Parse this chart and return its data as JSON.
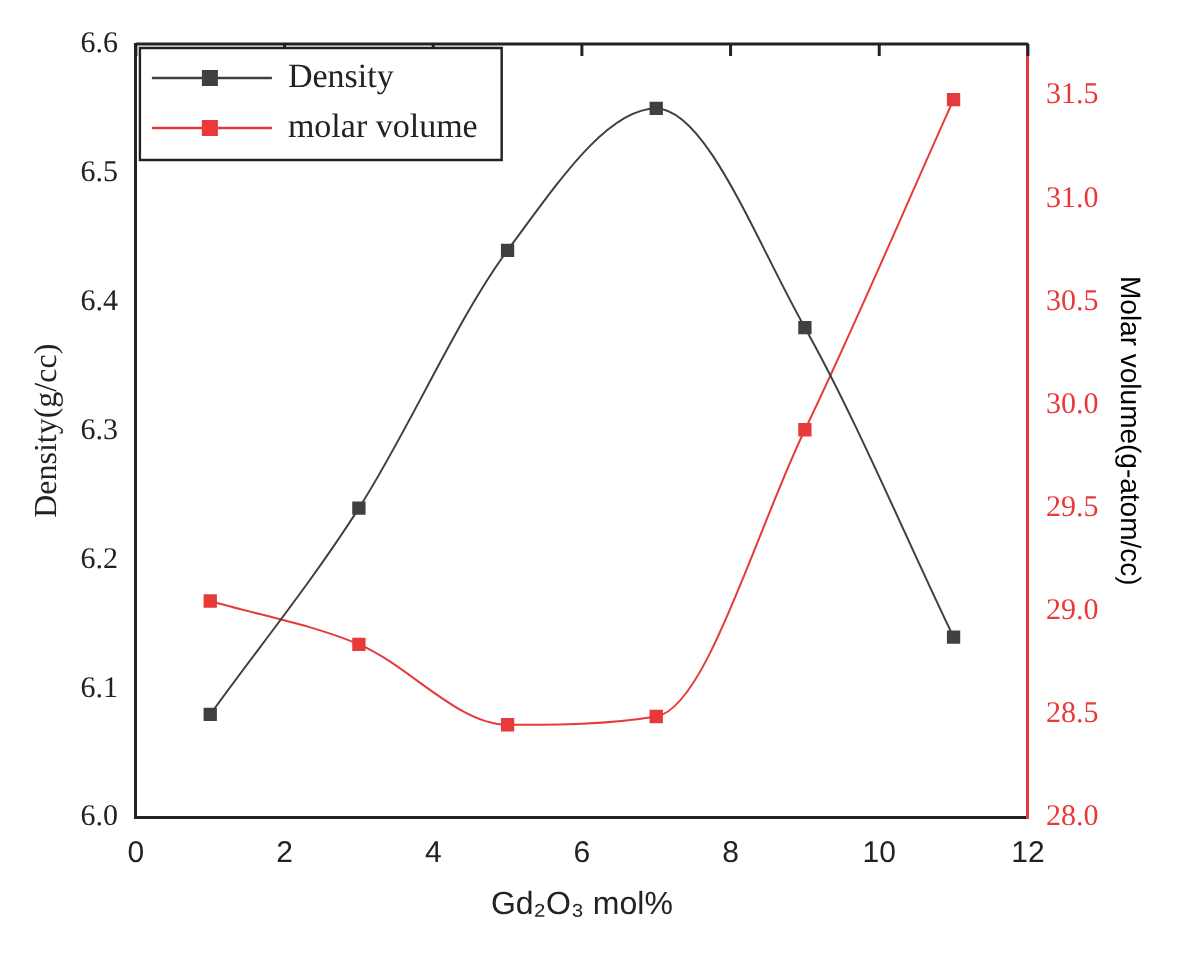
{
  "chart_data": {
    "type": "line",
    "xlabel": "Gd₂O₃ mol%",
    "ylabel": "Density(g/cc)",
    "y2label": "Molar volume(g-atom/cc)",
    "x": [
      1,
      3,
      5,
      7,
      9,
      11
    ],
    "series": [
      {
        "name": "Density",
        "color": "#404040",
        "values": [
          6.08,
          6.24,
          6.44,
          6.55,
          6.38,
          6.14
        ]
      },
      {
        "name": "molar volume",
        "color": "#e83a3a",
        "axis": "y2",
        "values": [
          29.05,
          28.84,
          28.45,
          28.49,
          29.88,
          31.48
        ]
      }
    ],
    "xlim": [
      0,
      12
    ],
    "xticks": [
      0,
      2,
      4,
      6,
      8,
      10,
      12
    ],
    "ylim": [
      6.0,
      6.6
    ],
    "yticks": [
      {
        "value": 6.0,
        "label": "6.0"
      },
      {
        "value": 6.1,
        "label": "6.1"
      },
      {
        "value": 6.2,
        "label": "6.2"
      },
      {
        "value": 6.3,
        "label": "6.3"
      },
      {
        "value": 6.4,
        "label": "6.4"
      },
      {
        "value": 6.5,
        "label": "6.5"
      },
      {
        "value": 6.6,
        "label": "6.6"
      }
    ],
    "y2lim": [
      28.0,
      31.75
    ],
    "y2ticks": [
      {
        "value": 28,
        "label": "28.0"
      },
      {
        "value": 28.5,
        "label": "28.5"
      },
      {
        "value": 29,
        "label": "29.0"
      },
      {
        "value": 29.5,
        "label": "29.5"
      },
      {
        "value": 30,
        "label": "30.0"
      },
      {
        "value": 30.5,
        "label": "30.5"
      },
      {
        "value": 31,
        "label": "31.0"
      },
      {
        "value": 31.5,
        "label": "31.5"
      }
    ],
    "grid": false,
    "legend": "top left",
    "marker": "square",
    "line_style": "solid"
  }
}
